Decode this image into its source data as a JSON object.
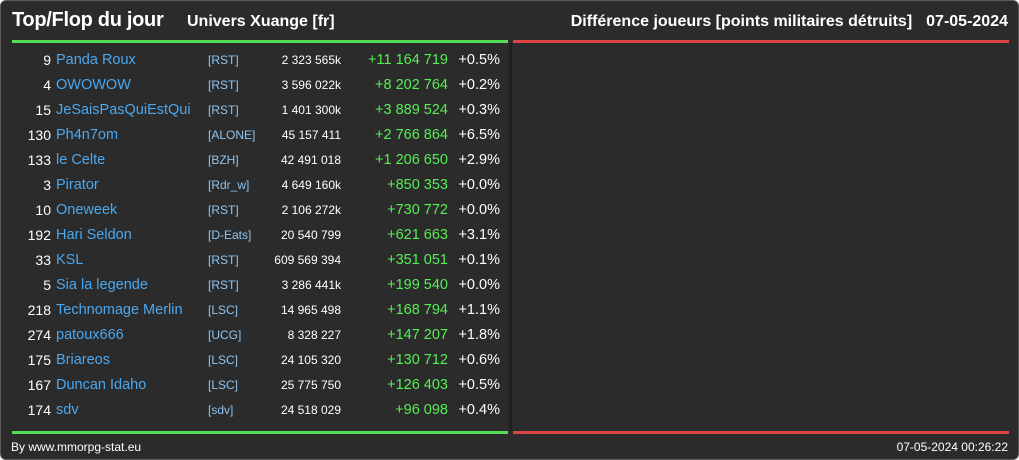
{
  "header": {
    "title": "Top/Flop du jour",
    "universe": "Univers Xuange [fr]",
    "ranking_label": "Différence joueurs [points militaires détruits]",
    "date": "07-05-2024"
  },
  "colors": {
    "top_accent": "#55dd55",
    "flop_accent": "#dd4444",
    "player_link": "#4aa8f0",
    "positive_diff": "#55ee55"
  },
  "top_rows": [
    {
      "rank": "9",
      "player": "Panda Roux",
      "alliance": "[RST]",
      "points": "2 323 565k",
      "diff": "+11 164 719",
      "pct": "+0.5%"
    },
    {
      "rank": "4",
      "player": "OWOWOW",
      "alliance": "[RST]",
      "points": "3 596 022k",
      "diff": "+8 202 764",
      "pct": "+0.2%"
    },
    {
      "rank": "15",
      "player": "JeSaisPasQuiEstQui",
      "alliance": "[RST]",
      "points": "1 401 300k",
      "diff": "+3 889 524",
      "pct": "+0.3%"
    },
    {
      "rank": "130",
      "player": "Ph4n7om",
      "alliance": "[ALONE]",
      "points": "45 157 411",
      "diff": "+2 766 864",
      "pct": "+6.5%"
    },
    {
      "rank": "133",
      "player": "le Celte",
      "alliance": "[BZH]",
      "points": "42 491 018",
      "diff": "+1 206 650",
      "pct": "+2.9%"
    },
    {
      "rank": "3",
      "player": "Pirator",
      "alliance": "[Rdr_w]",
      "points": "4 649 160k",
      "diff": "+850 353",
      "pct": "+0.0%"
    },
    {
      "rank": "10",
      "player": "Oneweek",
      "alliance": "[RST]",
      "points": "2 106 272k",
      "diff": "+730 772",
      "pct": "+0.0%"
    },
    {
      "rank": "192",
      "player": "Hari Seldon",
      "alliance": "[D-Eats]",
      "points": "20 540 799",
      "diff": "+621 663",
      "pct": "+3.1%"
    },
    {
      "rank": "33",
      "player": "KSL",
      "alliance": "[RST]",
      "points": "609 569 394",
      "diff": "+351 051",
      "pct": "+0.1%"
    },
    {
      "rank": "5",
      "player": "Sia la legende",
      "alliance": "[RST]",
      "points": "3 286 441k",
      "diff": "+199 540",
      "pct": "+0.0%"
    },
    {
      "rank": "218",
      "player": "Technomage Merlin",
      "alliance": "[LSC]",
      "points": "14 965 498",
      "diff": "+168 794",
      "pct": "+1.1%"
    },
    {
      "rank": "274",
      "player": "patoux666",
      "alliance": "[UCG]",
      "points": "8 328 227",
      "diff": "+147 207",
      "pct": "+1.8%"
    },
    {
      "rank": "175",
      "player": "Briareos",
      "alliance": "[LSC]",
      "points": "24 105 320",
      "diff": "+130 712",
      "pct": "+0.6%"
    },
    {
      "rank": "167",
      "player": "Duncan Idaho",
      "alliance": "[LSC]",
      "points": "25 775 750",
      "diff": "+126 403",
      "pct": "+0.5%"
    },
    {
      "rank": "174",
      "player": "sdv",
      "alliance": "[sdv]",
      "points": "24 518 029",
      "diff": "+96 098",
      "pct": "+0.4%"
    }
  ],
  "flop_rows": [],
  "footer": {
    "credit": "By www.mmorpg-stat.eu",
    "generated": "07-05-2024 00:26:22"
  }
}
